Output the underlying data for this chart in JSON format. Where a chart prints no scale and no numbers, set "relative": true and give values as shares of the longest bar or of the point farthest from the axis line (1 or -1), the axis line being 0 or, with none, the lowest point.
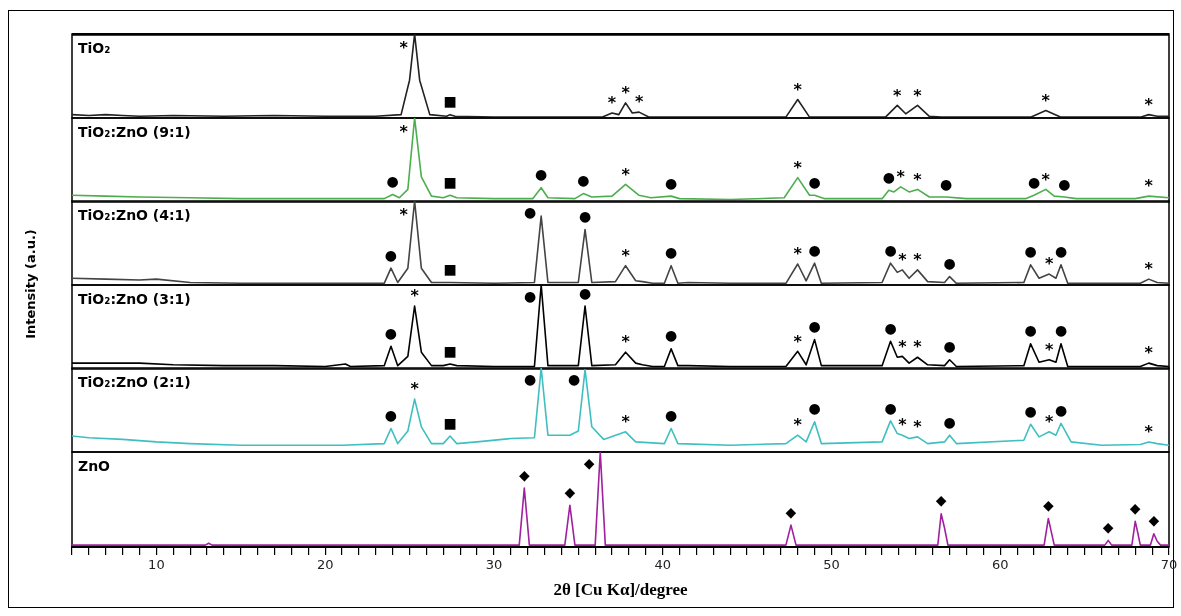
{
  "chart_data": [
    {
      "type": "line",
      "relative": true,
      "tick_labels": false,
      "title": "TiO₂",
      "color": "#222222",
      "xlim": [
        5,
        70
      ],
      "x": [
        5,
        6,
        7,
        8,
        9,
        11,
        14,
        17,
        20,
        23,
        24.5,
        25.0,
        25.3,
        25.6,
        26.2,
        27.2,
        27.4,
        27.7,
        30,
        33,
        36.4,
        37.0,
        37.4,
        37.8,
        38.2,
        38.6,
        39.2,
        44,
        47.3,
        48.0,
        48.7,
        53.2,
        53.9,
        54.4,
        55.1,
        55.8,
        56.5,
        61.8,
        62.7,
        63.6,
        68.3,
        68.8,
        69.3,
        70
      ],
      "values": [
        0.04,
        0.03,
        0.04,
        0.03,
        0.02,
        0.03,
        0.02,
        0.03,
        0.02,
        0.02,
        0.04,
        0.45,
        1,
        0.45,
        0.04,
        0.02,
        0.04,
        0.02,
        0.01,
        0.01,
        0.01,
        0.06,
        0.04,
        0.18,
        0.06,
        0.07,
        0.01,
        0.01,
        0.01,
        0.22,
        0.01,
        0.01,
        0.15,
        0.05,
        0.15,
        0.02,
        0.01,
        0.01,
        0.09,
        0.01,
        0.01,
        0.04,
        0.02,
        0.02
      ],
      "annotations": [
        {
          "text": "*",
          "x": 25.3,
          "y": 1
        },
        {
          "text": "■",
          "x": 27.4,
          "y": 0.04
        },
        {
          "text": "*",
          "x": 37.0,
          "y": 0.06
        },
        {
          "text": "*",
          "x": 37.8,
          "y": 0.18
        },
        {
          "text": "*",
          "x": 38.6,
          "y": 0.07
        },
        {
          "text": "*",
          "x": 48.0,
          "y": 0.22
        },
        {
          "text": "*",
          "x": 53.9,
          "y": 0.15
        },
        {
          "text": "*",
          "x": 55.1,
          "y": 0.15
        },
        {
          "text": "*",
          "x": 62.7,
          "y": 0.09
        },
        {
          "text": "*",
          "x": 68.8,
          "y": 0.04
        }
      ]
    },
    {
      "type": "line",
      "relative": true,
      "tick_labels": false,
      "title": "TiO₂:ZnO (9:1)",
      "color": "#4cae4c",
      "xlim": [
        5,
        70
      ],
      "x": [
        5,
        7,
        9,
        12,
        15,
        18,
        21,
        23.5,
        24.0,
        24.4,
        24.9,
        25.3,
        25.7,
        26.3,
        27.0,
        27.4,
        27.8,
        30,
        32.3,
        32.8,
        33.2,
        34.8,
        35.3,
        35.8,
        37.0,
        37.8,
        38.6,
        39.3,
        40.5,
        41,
        44,
        47.2,
        48.0,
        48.7,
        49.0,
        49.6,
        53.0,
        53.4,
        53.7,
        54.1,
        54.6,
        55.1,
        55.8,
        56.8,
        58,
        61.5,
        62.0,
        62.7,
        63.2,
        63.8,
        64.5,
        68.0,
        68.8,
        70
      ],
      "values": [
        0.08,
        0.07,
        0.06,
        0.05,
        0.04,
        0.04,
        0.04,
        0.04,
        0.09,
        0.05,
        0.15,
        1,
        0.3,
        0.07,
        0.05,
        0.08,
        0.05,
        0.04,
        0.04,
        0.17,
        0.05,
        0.04,
        0.1,
        0.06,
        0.07,
        0.21,
        0.08,
        0.05,
        0.07,
        0.04,
        0.03,
        0.05,
        0.29,
        0.08,
        0.08,
        0.04,
        0.04,
        0.14,
        0.12,
        0.18,
        0.12,
        0.15,
        0.06,
        0.06,
        0.04,
        0.04,
        0.08,
        0.15,
        0.07,
        0.06,
        0.04,
        0.04,
        0.07,
        0.05
      ],
      "annotations": [
        {
          "text": "●",
          "x": 24.0,
          "y": 0.09
        },
        {
          "text": "*",
          "x": 25.3,
          "y": 1
        },
        {
          "text": "■",
          "x": 27.4,
          "y": 0.08
        },
        {
          "text": "●",
          "x": 32.8,
          "y": 0.17
        },
        {
          "text": "●",
          "x": 35.3,
          "y": 0.1
        },
        {
          "text": "*",
          "x": 37.8,
          "y": 0.21
        },
        {
          "text": "●",
          "x": 40.5,
          "y": 0.07
        },
        {
          "text": "*",
          "x": 48.0,
          "y": 0.29
        },
        {
          "text": "●",
          "x": 49.0,
          "y": 0.08
        },
        {
          "text": "●",
          "x": 53.4,
          "y": 0.14
        },
        {
          "text": "*",
          "x": 54.1,
          "y": 0.18
        },
        {
          "text": "*",
          "x": 55.1,
          "y": 0.15
        },
        {
          "text": "●",
          "x": 56.8,
          "y": 0.06
        },
        {
          "text": "●",
          "x": 62.0,
          "y": 0.08
        },
        {
          "text": "*",
          "x": 62.7,
          "y": 0.15
        },
        {
          "text": "●",
          "x": 63.8,
          "y": 0.06
        },
        {
          "text": "*",
          "x": 68.8,
          "y": 0.07
        }
      ]
    },
    {
      "type": "line",
      "relative": true,
      "tick_labels": false,
      "title": "TiO₂:ZnO (4:1)",
      "color": "#444444",
      "xlim": [
        5,
        70
      ],
      "x": [
        5,
        7,
        9,
        10,
        12,
        15,
        18,
        21,
        23.5,
        23.9,
        24.3,
        24.9,
        25.3,
        25.7,
        26.3,
        27.4,
        30,
        32.4,
        32.8,
        33.2,
        35.0,
        35.4,
        35.8,
        37.2,
        37.8,
        38.4,
        38.8,
        39.4,
        40.1,
        40.5,
        40.9,
        41.5,
        44,
        47.3,
        48.0,
        48.5,
        49.0,
        49.4,
        53.0,
        53.5,
        53.9,
        54.2,
        54.6,
        55.1,
        55.7,
        56.7,
        57.0,
        57.4,
        61.4,
        61.8,
        62.3,
        62.9,
        63.3,
        63.6,
        64.0,
        68.3,
        68.8,
        69.3,
        70
      ],
      "values": [
        0.08,
        0.07,
        0.06,
        0.07,
        0.03,
        0.02,
        0.02,
        0.02,
        0.02,
        0.2,
        0.03,
        0.2,
        1,
        0.2,
        0.03,
        0.03,
        0.02,
        0.03,
        0.82,
        0.03,
        0.03,
        0.66,
        0.03,
        0.04,
        0.23,
        0.05,
        0.04,
        0.02,
        0.02,
        0.23,
        0.02,
        0.03,
        0.02,
        0.02,
        0.25,
        0.05,
        0.26,
        0.02,
        0.03,
        0.26,
        0.15,
        0.18,
        0.08,
        0.18,
        0.04,
        0.03,
        0.1,
        0.02,
        0.03,
        0.24,
        0.08,
        0.13,
        0.08,
        0.24,
        0.02,
        0.02,
        0.07,
        0.03,
        0.02
      ],
      "annotations": [
        {
          "text": "●",
          "x": 23.9,
          "y": 0.2
        },
        {
          "text": "*",
          "x": 25.3,
          "y": 1
        },
        {
          "text": "■",
          "x": 27.4,
          "y": 0.03
        },
        {
          "text": "●",
          "x": 32.8,
          "y": 0.82
        },
        {
          "text": "●",
          "x": 35.4,
          "y": 0.66
        },
        {
          "text": "*",
          "x": 37.8,
          "y": 0.23
        },
        {
          "text": "●",
          "x": 40.5,
          "y": 0.23
        },
        {
          "text": "*",
          "x": 48.0,
          "y": 0.25
        },
        {
          "text": "●",
          "x": 49.0,
          "y": 0.26
        },
        {
          "text": "●",
          "x": 53.5,
          "y": 0.26
        },
        {
          "text": "*",
          "x": 54.2,
          "y": 0.18
        },
        {
          "text": "*",
          "x": 55.1,
          "y": 0.18
        },
        {
          "text": "●",
          "x": 57.0,
          "y": 0.1
        },
        {
          "text": "●",
          "x": 61.8,
          "y": 0.24
        },
        {
          "text": "*",
          "x": 62.9,
          "y": 0.13
        },
        {
          "text": "●",
          "x": 63.6,
          "y": 0.24
        },
        {
          "text": "*",
          "x": 68.8,
          "y": 0.07
        }
      ]
    },
    {
      "type": "line",
      "relative": true,
      "tick_labels": false,
      "title": "TiO₂:ZnO (3:1)",
      "color": "#000000",
      "xlim": [
        5,
        70
      ],
      "x": [
        5,
        7,
        9,
        11,
        14,
        17,
        20,
        21.2,
        21.5,
        23.5,
        23.9,
        24.3,
        24.9,
        25.3,
        25.7,
        26.3,
        27.0,
        27.4,
        27.8,
        30,
        32.4,
        32.8,
        33.2,
        35.0,
        35.4,
        35.8,
        37.2,
        37.8,
        38.4,
        38.8,
        39.4,
        40.1,
        40.5,
        40.9,
        41.5,
        44,
        47.3,
        48.0,
        48.5,
        49.0,
        49.4,
        53.0,
        53.5,
        53.9,
        54.2,
        54.6,
        55.1,
        55.7,
        56.7,
        57.0,
        57.4,
        61.4,
        61.8,
        62.3,
        62.9,
        63.3,
        63.6,
        64.0,
        68.3,
        68.8,
        69.3,
        70
      ],
      "values": [
        0.07,
        0.07,
        0.07,
        0.05,
        0.04,
        0.04,
        0.03,
        0.06,
        0.03,
        0.04,
        0.27,
        0.04,
        0.15,
        0.75,
        0.2,
        0.04,
        0.04,
        0.06,
        0.04,
        0.03,
        0.03,
        1,
        0.04,
        0.04,
        0.75,
        0.04,
        0.05,
        0.2,
        0.07,
        0.05,
        0.03,
        0.03,
        0.24,
        0.04,
        0.04,
        0.03,
        0.03,
        0.21,
        0.05,
        0.35,
        0.04,
        0.04,
        0.33,
        0.14,
        0.15,
        0.07,
        0.14,
        0.05,
        0.04,
        0.11,
        0.03,
        0.04,
        0.3,
        0.08,
        0.11,
        0.08,
        0.3,
        0.03,
        0.03,
        0.07,
        0.04,
        0.03
      ],
      "annotations": [
        {
          "text": "●",
          "x": 23.9,
          "y": 0.27
        },
        {
          "text": "*",
          "x": 25.3,
          "y": 0.75
        },
        {
          "text": "■",
          "x": 27.4,
          "y": 0.06
        },
        {
          "text": "●",
          "x": 32.8,
          "y": 1
        },
        {
          "text": "●",
          "x": 35.4,
          "y": 0.75
        },
        {
          "text": "*",
          "x": 37.8,
          "y": 0.2
        },
        {
          "text": "●",
          "x": 40.5,
          "y": 0.24
        },
        {
          "text": "*",
          "x": 48.0,
          "y": 0.21
        },
        {
          "text": "●",
          "x": 49.0,
          "y": 0.35
        },
        {
          "text": "●",
          "x": 53.5,
          "y": 0.33
        },
        {
          "text": "*",
          "x": 54.2,
          "y": 0.15
        },
        {
          "text": "*",
          "x": 55.1,
          "y": 0.14
        },
        {
          "text": "●",
          "x": 57.0,
          "y": 0.11
        },
        {
          "text": "●",
          "x": 61.8,
          "y": 0.3
        },
        {
          "text": "*",
          "x": 62.9,
          "y": 0.11
        },
        {
          "text": "●",
          "x": 63.6,
          "y": 0.3
        },
        {
          "text": "*",
          "x": 68.8,
          "y": 0.07
        }
      ]
    },
    {
      "type": "line",
      "relative": true,
      "tick_labels": false,
      "title": "TiO₂:ZnO (2:1)",
      "color": "#3fbfc0",
      "xlim": [
        5,
        70
      ],
      "x": [
        5,
        6,
        8,
        10,
        12,
        15,
        18,
        21,
        23.5,
        23.9,
        24.3,
        24.9,
        25.3,
        25.7,
        26.3,
        27.0,
        27.4,
        27.8,
        29,
        31,
        32.4,
        32.8,
        33.2,
        34.5,
        35.0,
        35.4,
        35.8,
        36.5,
        37.8,
        38.4,
        40.1,
        40.5,
        40.9,
        44,
        47.3,
        48.0,
        48.5,
        49.0,
        49.4,
        53.0,
        53.5,
        53.9,
        54.2,
        54.6,
        55.1,
        55.7,
        56.7,
        57.0,
        57.4,
        61.4,
        61.8,
        62.3,
        62.9,
        63.3,
        63.6,
        64.2,
        66,
        68.3,
        68.8,
        69.3,
        70
      ],
      "values": [
        0.19,
        0.17,
        0.15,
        0.12,
        0.1,
        0.08,
        0.08,
        0.08,
        0.1,
        0.28,
        0.1,
        0.25,
        0.63,
        0.3,
        0.1,
        0.1,
        0.19,
        0.1,
        0.12,
        0.16,
        0.17,
        1,
        0.2,
        0.2,
        0.25,
        0.98,
        0.3,
        0.15,
        0.24,
        0.12,
        0.1,
        0.28,
        0.1,
        0.08,
        0.1,
        0.2,
        0.12,
        0.36,
        0.1,
        0.12,
        0.37,
        0.22,
        0.2,
        0.16,
        0.18,
        0.1,
        0.12,
        0.2,
        0.1,
        0.14,
        0.33,
        0.18,
        0.24,
        0.2,
        0.34,
        0.12,
        0.08,
        0.09,
        0.12,
        0.1,
        0.08
      ],
      "annotations": [
        {
          "text": "●",
          "x": 23.9,
          "y": 0.28
        },
        {
          "text": "*",
          "x": 25.3,
          "y": 0.63
        },
        {
          "text": "■",
          "x": 27.4,
          "y": 0.19
        },
        {
          "text": "●",
          "x": 32.8,
          "y": 1
        },
        {
          "text": "●",
          "x": 35.4,
          "y": 0.98
        },
        {
          "text": "*",
          "x": 37.8,
          "y": 0.24
        },
        {
          "text": "●",
          "x": 40.5,
          "y": 0.28
        },
        {
          "text": "*",
          "x": 48.0,
          "y": 0.2
        },
        {
          "text": "●",
          "x": 49.0,
          "y": 0.36
        },
        {
          "text": "●",
          "x": 53.5,
          "y": 0.37
        },
        {
          "text": "*",
          "x": 54.2,
          "y": 0.2
        },
        {
          "text": "*",
          "x": 55.1,
          "y": 0.18
        },
        {
          "text": "●",
          "x": 57.0,
          "y": 0.2
        },
        {
          "text": "●",
          "x": 61.8,
          "y": 0.33
        },
        {
          "text": "*",
          "x": 62.9,
          "y": 0.24
        },
        {
          "text": "●",
          "x": 63.6,
          "y": 0.34
        },
        {
          "text": "*",
          "x": 68.8,
          "y": 0.12
        }
      ]
    },
    {
      "type": "line",
      "relative": true,
      "tick_labels": "x",
      "title": "ZnO",
      "color": "#a0209f",
      "xlabel": "2θ [Cu Kα]/degree",
      "ylabel": "Intensity (a.u.)",
      "xlim": [
        5,
        70
      ],
      "xticks": [
        {
          "value": 5,
          "label": null
        },
        {
          "value": 6,
          "label": null
        },
        {
          "value": 7,
          "label": null
        },
        {
          "value": 8,
          "label": null
        },
        {
          "value": 9,
          "label": null
        },
        10,
        {
          "value": 11,
          "label": null
        },
        {
          "value": 12,
          "label": null
        },
        {
          "value": 13,
          "label": null
        },
        {
          "value": 14,
          "label": null
        },
        {
          "value": 15,
          "label": null
        },
        {
          "value": 16,
          "label": null
        },
        {
          "value": 17,
          "label": null
        },
        {
          "value": 18,
          "label": null
        },
        {
          "value": 19,
          "label": null
        },
        20,
        {
          "value": 21,
          "label": null
        },
        {
          "value": 22,
          "label": null
        },
        {
          "value": 23,
          "label": null
        },
        {
          "value": 24,
          "label": null
        },
        {
          "value": 25,
          "label": null
        },
        {
          "value": 26,
          "label": null
        },
        {
          "value": 27,
          "label": null
        },
        {
          "value": 28,
          "label": null
        },
        {
          "value": 29,
          "label": null
        },
        30,
        {
          "value": 31,
          "label": null
        },
        {
          "value": 32,
          "label": null
        },
        {
          "value": 33,
          "label": null
        },
        {
          "value": 34,
          "label": null
        },
        {
          "value": 35,
          "label": null
        },
        {
          "value": 36,
          "label": null
        },
        {
          "value": 37,
          "label": null
        },
        {
          "value": 38,
          "label": null
        },
        {
          "value": 39,
          "label": null
        },
        40,
        {
          "value": 41,
          "label": null
        },
        {
          "value": 42,
          "label": null
        },
        {
          "value": 43,
          "label": null
        },
        {
          "value": 44,
          "label": null
        },
        {
          "value": 45,
          "label": null
        },
        {
          "value": 46,
          "label": null
        },
        {
          "value": 47,
          "label": null
        },
        {
          "value": 48,
          "label": null
        },
        {
          "value": 49,
          "label": null
        },
        50,
        {
          "value": 51,
          "label": null
        },
        {
          "value": 52,
          "label": null
        },
        {
          "value": 53,
          "label": null
        },
        {
          "value": 54,
          "label": null
        },
        {
          "value": 55,
          "label": null
        },
        {
          "value": 56,
          "label": null
        },
        {
          "value": 57,
          "label": null
        },
        {
          "value": 58,
          "label": null
        },
        {
          "value": 59,
          "label": null
        },
        60,
        {
          "value": 61,
          "label": null
        },
        {
          "value": 62,
          "label": null
        },
        {
          "value": 63,
          "label": null
        },
        {
          "value": 64,
          "label": null
        },
        {
          "value": 65,
          "label": null
        },
        {
          "value": 66,
          "label": null
        },
        {
          "value": 67,
          "label": null
        },
        {
          "value": 68,
          "label": null
        },
        {
          "value": 69,
          "label": null
        },
        70
      ],
      "x": [
        5,
        10,
        12.9,
        13.1,
        13.3,
        20,
        25,
        31.5,
        31.8,
        32.1,
        34.2,
        34.5,
        34.8,
        36.0,
        36.3,
        36.6,
        45,
        47.3,
        47.6,
        47.9,
        56.3,
        56.5,
        56.7,
        56.9,
        62.6,
        62.85,
        63.0,
        63.2,
        66.2,
        66.4,
        66.6,
        67.8,
        68.0,
        68.15,
        68.3,
        68.9,
        69.1,
        69.3,
        69.5,
        70
      ],
      "values": [
        0.02,
        0.02,
        0.02,
        0.04,
        0.02,
        0.02,
        0.02,
        0.02,
        0.62,
        0.02,
        0.02,
        0.44,
        0.02,
        0.02,
        1,
        0.02,
        0.02,
        0.02,
        0.23,
        0.02,
        0.02,
        0.35,
        0.2,
        0.02,
        0.02,
        0.3,
        0.18,
        0.02,
        0.02,
        0.07,
        0.02,
        0.02,
        0.27,
        0.15,
        0.02,
        0.02,
        0.14,
        0.06,
        0.02,
        0.02
      ],
      "annotations": [
        {
          "text": "◆",
          "x": 31.8,
          "y": 0.62
        },
        {
          "text": "◆",
          "x": 34.5,
          "y": 0.44
        },
        {
          "text": "◆",
          "x": 36.3,
          "y": 1
        },
        {
          "text": "◆",
          "x": 47.6,
          "y": 0.23
        },
        {
          "text": "◆",
          "x": 56.5,
          "y": 0.35
        },
        {
          "text": "◆",
          "x": 62.85,
          "y": 0.3
        },
        {
          "text": "◆",
          "x": 66.4,
          "y": 0.07
        },
        {
          "text": "◆",
          "x": 68.0,
          "y": 0.27
        },
        {
          "text": "◆",
          "x": 69.1,
          "y": 0.14
        }
      ]
    }
  ]
}
